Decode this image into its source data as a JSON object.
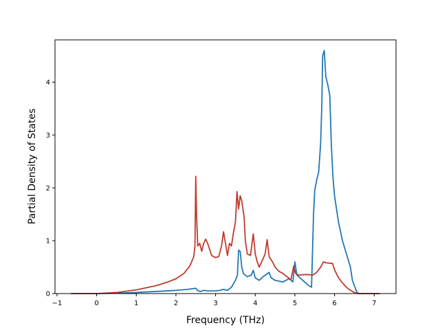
{
  "chart_data": {
    "type": "line",
    "title": "",
    "xlabel": "Frequency (THz)",
    "ylabel": "Partial Density of States",
    "xlim": [
      -1.05,
      7.55
    ],
    "ylim": [
      0,
      4.8
    ],
    "xticks": [
      "−1",
      "0",
      "1",
      "2",
      "3",
      "4",
      "5",
      "6",
      "7"
    ],
    "yticks": [
      "0",
      "1",
      "2",
      "3",
      "4"
    ],
    "grid": false,
    "legend": "none",
    "series": [
      {
        "color": "#1f77b4",
        "points": [
          [
            -0.65,
            0
          ],
          [
            0,
            0
          ],
          [
            0.5,
            0.005
          ],
          [
            1.0,
            0.02
          ],
          [
            1.5,
            0.04
          ],
          [
            2.0,
            0.06
          ],
          [
            2.3,
            0.08
          ],
          [
            2.5,
            0.1
          ],
          [
            2.56,
            0.05
          ],
          [
            2.62,
            0.04
          ],
          [
            2.7,
            0.06
          ],
          [
            2.8,
            0.05
          ],
          [
            2.9,
            0.05
          ],
          [
            3.0,
            0.05
          ],
          [
            3.1,
            0.06
          ],
          [
            3.2,
            0.08
          ],
          [
            3.3,
            0.06
          ],
          [
            3.4,
            0.12
          ],
          [
            3.5,
            0.25
          ],
          [
            3.55,
            0.35
          ],
          [
            3.58,
            0.82
          ],
          [
            3.62,
            0.8
          ],
          [
            3.66,
            0.5
          ],
          [
            3.7,
            0.38
          ],
          [
            3.8,
            0.32
          ],
          [
            3.9,
            0.35
          ],
          [
            3.95,
            0.44
          ],
          [
            4.0,
            0.3
          ],
          [
            4.1,
            0.25
          ],
          [
            4.2,
            0.32
          ],
          [
            4.35,
            0.4
          ],
          [
            4.4,
            0.3
          ],
          [
            4.5,
            0.25
          ],
          [
            4.7,
            0.22
          ],
          [
            4.85,
            0.28
          ],
          [
            4.95,
            0.22
          ],
          [
            5.0,
            0.6
          ],
          [
            5.05,
            0.35
          ],
          [
            5.2,
            0.25
          ],
          [
            5.35,
            0.15
          ],
          [
            5.42,
            0.12
          ],
          [
            5.47,
            1.5
          ],
          [
            5.5,
            1.95
          ],
          [
            5.55,
            2.15
          ],
          [
            5.6,
            2.3
          ],
          [
            5.65,
            2.85
          ],
          [
            5.68,
            3.6
          ],
          [
            5.7,
            4.5
          ],
          [
            5.74,
            4.6
          ],
          [
            5.78,
            4.1
          ],
          [
            5.83,
            3.95
          ],
          [
            5.88,
            3.75
          ],
          [
            5.92,
            2.8
          ],
          [
            5.96,
            2.2
          ],
          [
            6.0,
            1.85
          ],
          [
            6.1,
            1.35
          ],
          [
            6.2,
            1.0
          ],
          [
            6.3,
            0.75
          ],
          [
            6.4,
            0.5
          ],
          [
            6.45,
            0.25
          ],
          [
            6.55,
            0.05
          ],
          [
            6.6,
            0.0
          ],
          [
            7.15,
            0
          ]
        ]
      },
      {
        "color": "#c0392b",
        "points": [
          [
            -0.65,
            0
          ],
          [
            0,
            0.0
          ],
          [
            0.5,
            0.02
          ],
          [
            1.0,
            0.07
          ],
          [
            1.5,
            0.15
          ],
          [
            1.8,
            0.22
          ],
          [
            2.0,
            0.28
          ],
          [
            2.2,
            0.38
          ],
          [
            2.35,
            0.52
          ],
          [
            2.45,
            0.7
          ],
          [
            2.48,
            0.9
          ],
          [
            2.5,
            2.22
          ],
          [
            2.52,
            1.5
          ],
          [
            2.55,
            0.9
          ],
          [
            2.6,
            0.95
          ],
          [
            2.65,
            0.8
          ],
          [
            2.7,
            0.95
          ],
          [
            2.75,
            1.03
          ],
          [
            2.8,
            0.95
          ],
          [
            2.9,
            0.72
          ],
          [
            3.0,
            0.68
          ],
          [
            3.08,
            0.7
          ],
          [
            3.15,
            0.9
          ],
          [
            3.2,
            1.17
          ],
          [
            3.25,
            0.95
          ],
          [
            3.3,
            0.72
          ],
          [
            3.35,
            0.95
          ],
          [
            3.4,
            0.9
          ],
          [
            3.45,
            1.15
          ],
          [
            3.5,
            1.35
          ],
          [
            3.54,
            1.93
          ],
          [
            3.58,
            1.6
          ],
          [
            3.62,
            1.85
          ],
          [
            3.66,
            1.75
          ],
          [
            3.72,
            1.45
          ],
          [
            3.75,
            1.0
          ],
          [
            3.8,
            0.75
          ],
          [
            3.88,
            0.72
          ],
          [
            3.95,
            1.13
          ],
          [
            4.0,
            0.75
          ],
          [
            4.05,
            0.6
          ],
          [
            4.1,
            0.5
          ],
          [
            4.15,
            0.58
          ],
          [
            4.25,
            0.75
          ],
          [
            4.3,
            1.02
          ],
          [
            4.35,
            0.7
          ],
          [
            4.45,
            0.58
          ],
          [
            4.5,
            0.5
          ],
          [
            4.6,
            0.42
          ],
          [
            4.7,
            0.38
          ],
          [
            4.8,
            0.32
          ],
          [
            4.9,
            0.26
          ],
          [
            4.97,
            0.52
          ],
          [
            5.02,
            0.38
          ],
          [
            5.1,
            0.35
          ],
          [
            5.3,
            0.36
          ],
          [
            5.45,
            0.35
          ],
          [
            5.55,
            0.4
          ],
          [
            5.65,
            0.5
          ],
          [
            5.72,
            0.6
          ],
          [
            5.8,
            0.58
          ],
          [
            5.95,
            0.57
          ],
          [
            6.0,
            0.45
          ],
          [
            6.1,
            0.3
          ],
          [
            6.2,
            0.2
          ],
          [
            6.3,
            0.12
          ],
          [
            6.4,
            0.06
          ],
          [
            6.5,
            0.02
          ],
          [
            6.6,
            0
          ],
          [
            7.15,
            0
          ]
        ]
      }
    ]
  }
}
